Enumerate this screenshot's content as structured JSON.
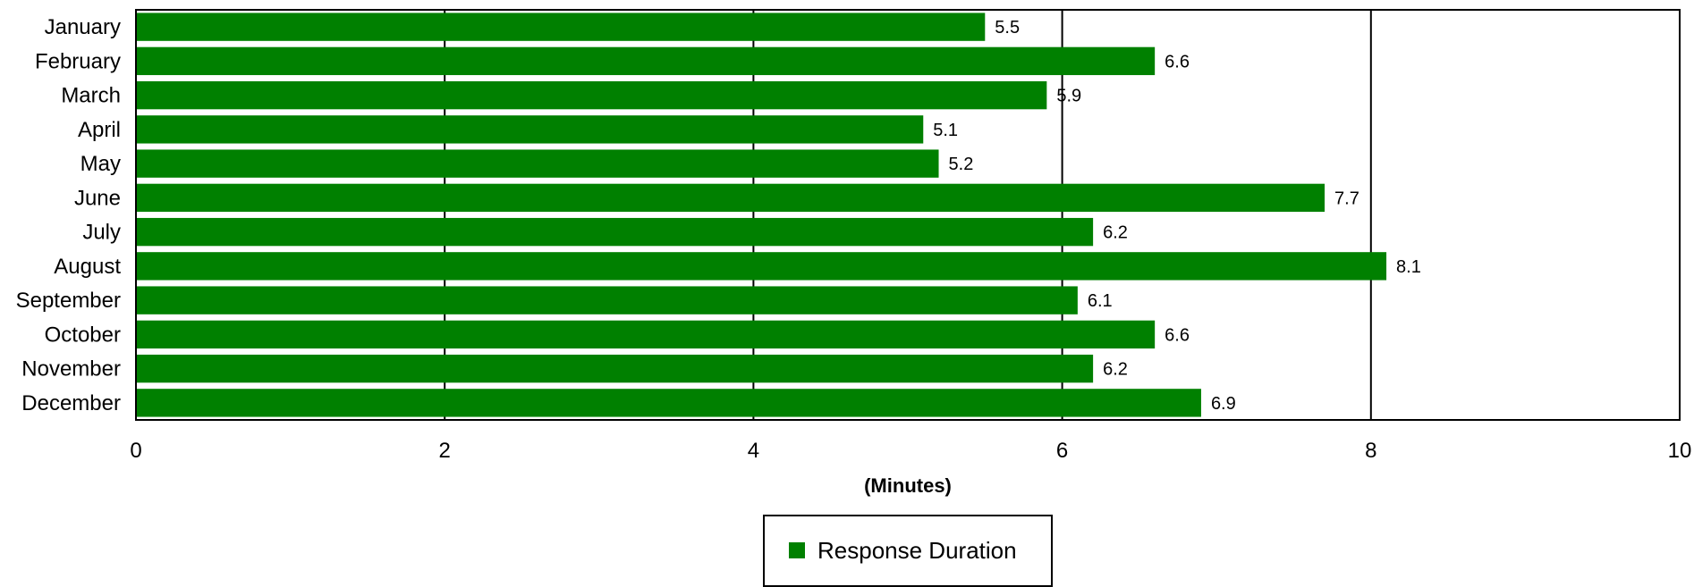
{
  "chart_data": {
    "type": "bar",
    "orientation": "horizontal",
    "categories": [
      "January",
      "February",
      "March",
      "April",
      "May",
      "June",
      "July",
      "August",
      "September",
      "October",
      "November",
      "December"
    ],
    "series": [
      {
        "name": "Response Duration",
        "color": "#008000",
        "values": [
          5.5,
          6.6,
          5.9,
          5.1,
          5.2,
          7.7,
          6.2,
          8.1,
          6.1,
          6.6,
          6.2,
          6.9
        ]
      }
    ],
    "xlabel": "(Minutes)",
    "xlim": [
      0,
      10
    ],
    "xticks": [
      0,
      2,
      4,
      6,
      8,
      10
    ],
    "grid": true,
    "legend_position": "bottom-center"
  }
}
